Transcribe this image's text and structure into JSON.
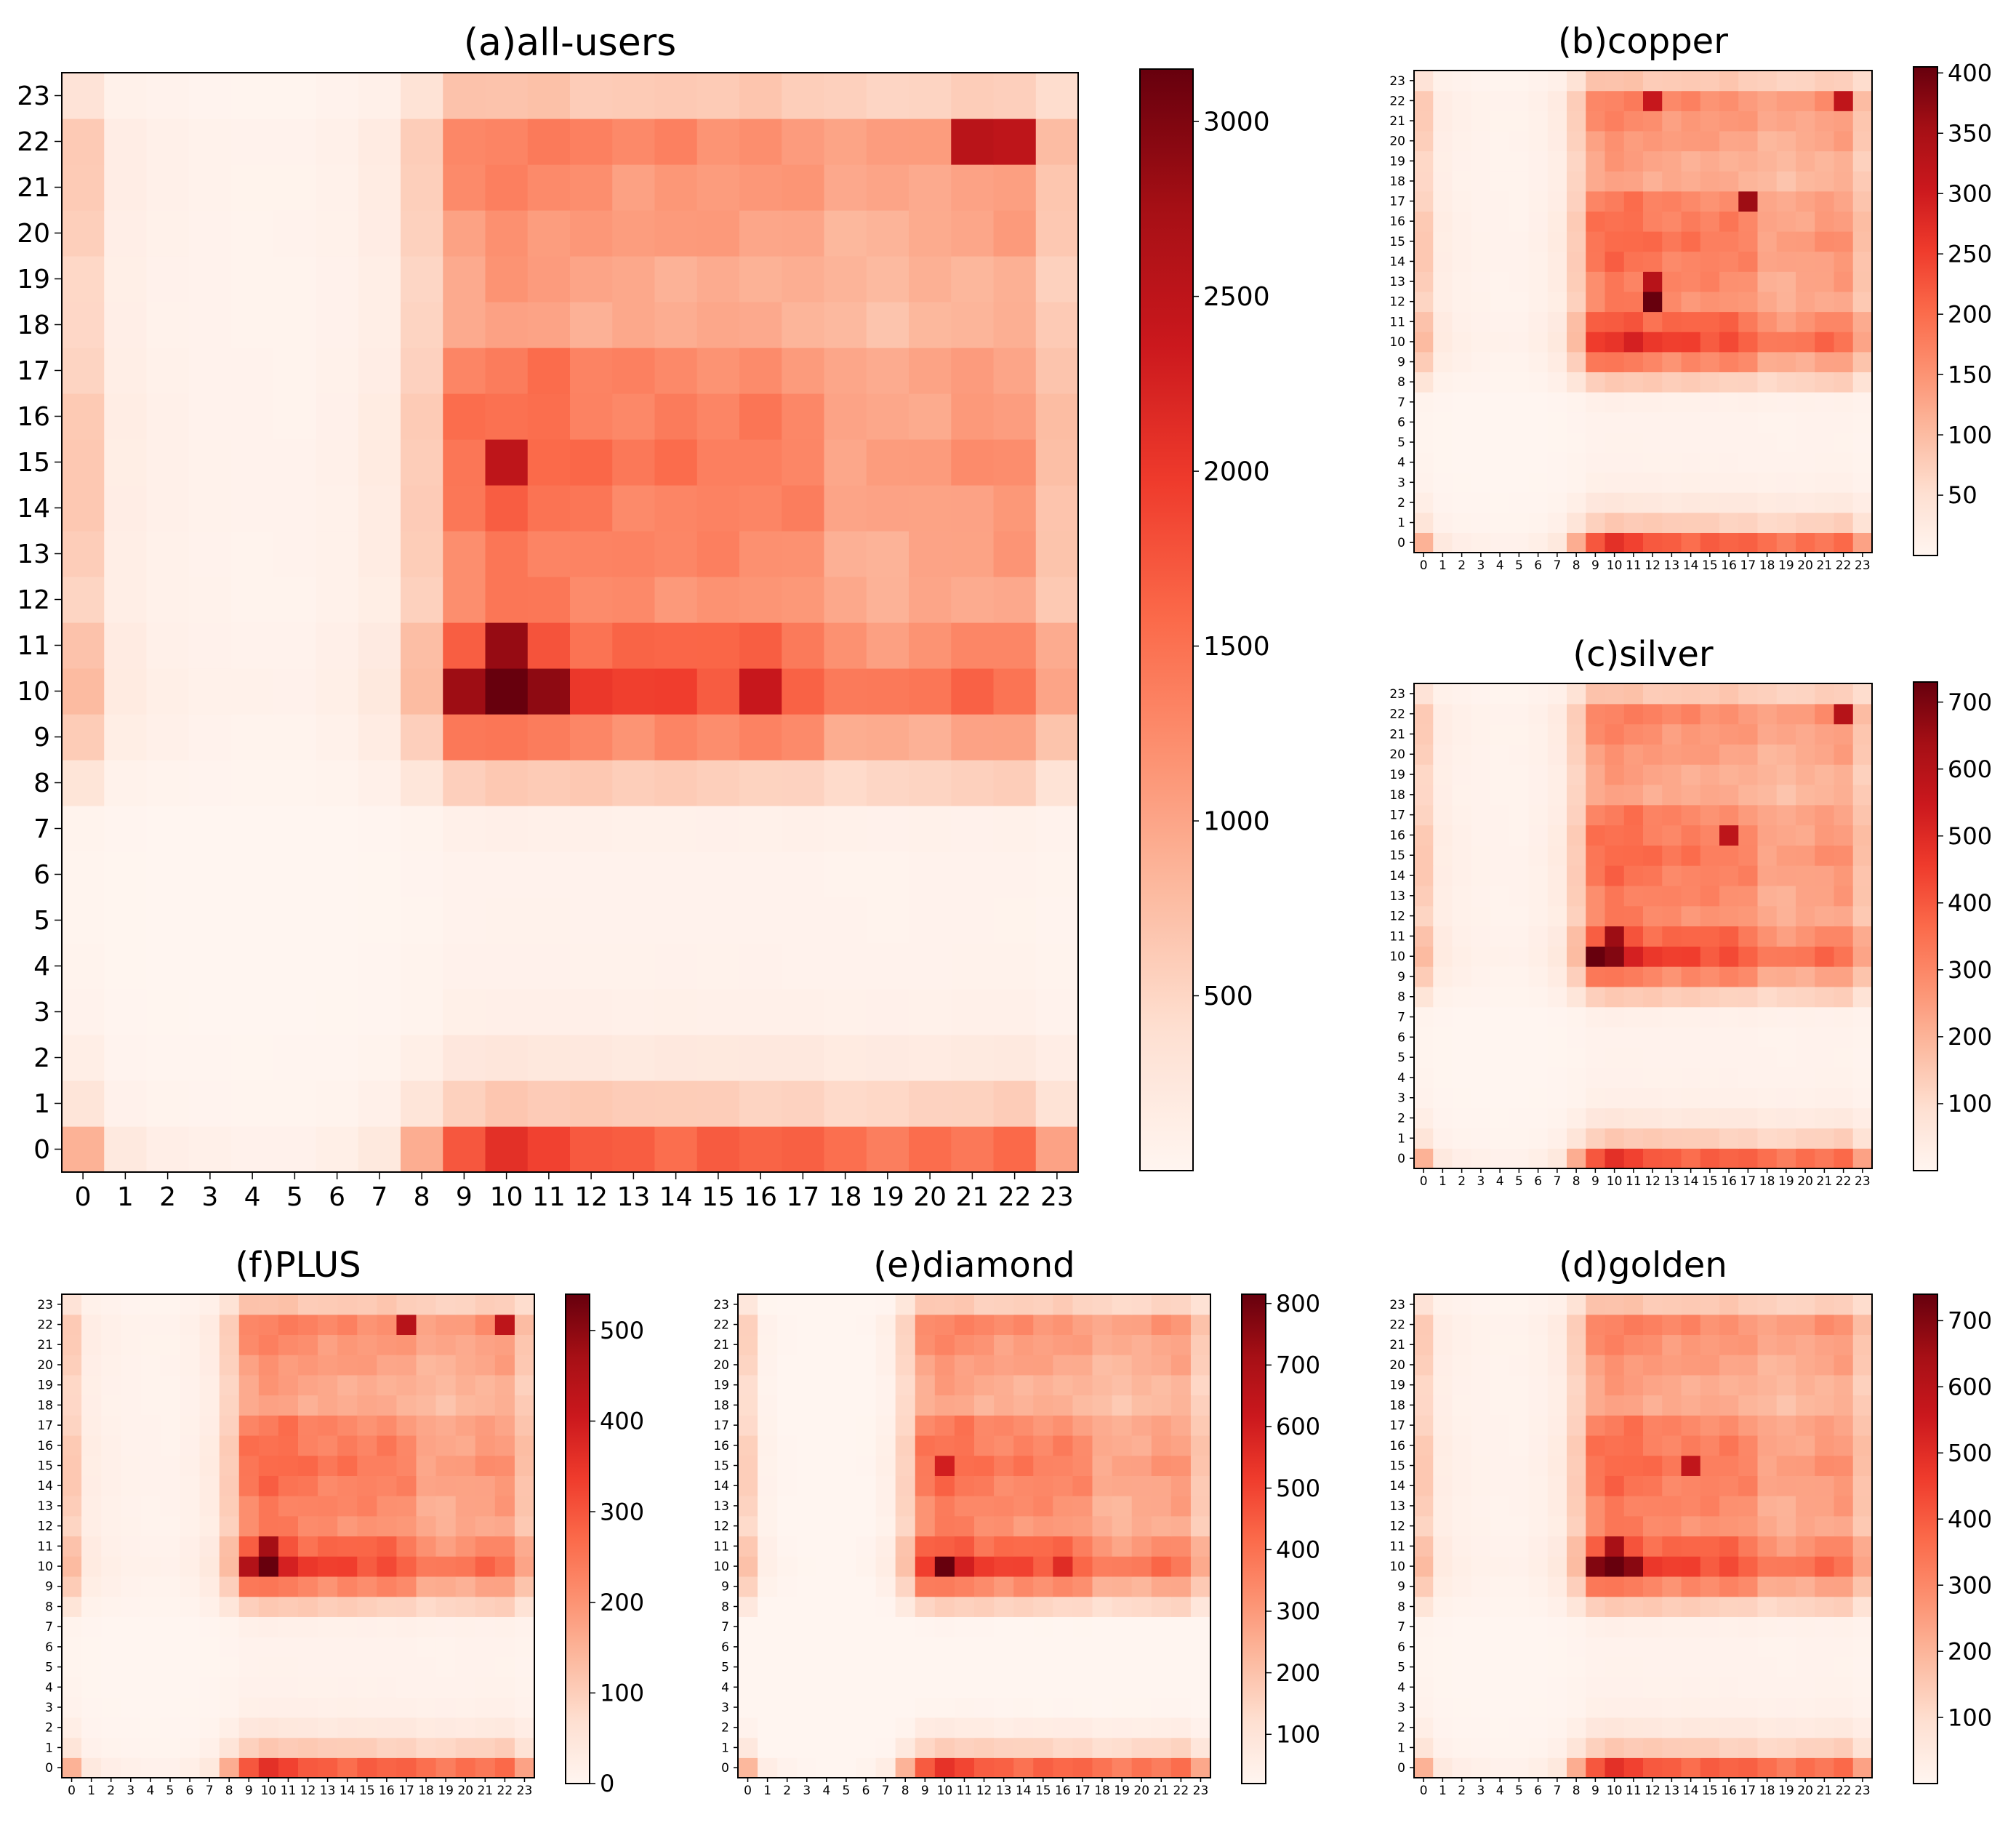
{
  "figure": {
    "background": "#ffffff"
  },
  "colormap": {
    "name": "Reds",
    "stops": [
      "#fff5f0",
      "#fee0d2",
      "#fcbba1",
      "#fc9272",
      "#fb6a4a",
      "#ef3b2c",
      "#cb181d",
      "#a50f15",
      "#67000d"
    ]
  },
  "chart_data": [
    {
      "id": "a",
      "type": "heatmap",
      "title": "(a)all-users",
      "xlabel": "",
      "ylabel": "",
      "x_categories": [
        "0",
        "1",
        "2",
        "3",
        "4",
        "5",
        "6",
        "7",
        "8",
        "9",
        "10",
        "11",
        "12",
        "13",
        "14",
        "15",
        "16",
        "17",
        "18",
        "19",
        "20",
        "21",
        "22",
        "23"
      ],
      "y_categories": [
        "0",
        "1",
        "2",
        "3",
        "4",
        "5",
        "6",
        "7",
        "8",
        "9",
        "10",
        "11",
        "12",
        "13",
        "14",
        "15",
        "16",
        "17",
        "18",
        "19",
        "20",
        "21",
        "22",
        "23"
      ],
      "vmin": 0,
      "vmax": 3150,
      "colorbar_ticks": [
        500,
        1000,
        1500,
        2000,
        2500,
        3000
      ],
      "peak": {
        "x": 10,
        "y": 10,
        "value": 3150
      },
      "hotspots": [
        {
          "x": 11,
          "y": 10,
          "value": 2900
        },
        {
          "x": 10,
          "y": 11,
          "value": 2850
        },
        {
          "x": 9,
          "y": 10,
          "value": 2800
        },
        {
          "x": 21,
          "y": 22,
          "value": 2550
        },
        {
          "x": 10,
          "y": 15,
          "value": 2500
        },
        {
          "x": 22,
          "y": 22,
          "value": 2500
        },
        {
          "x": 16,
          "y": 10,
          "value": 2400
        }
      ]
    },
    {
      "id": "b",
      "type": "heatmap",
      "title": "(b)copper",
      "xlabel": "",
      "ylabel": "",
      "x_categories": [
        "0",
        "1",
        "2",
        "3",
        "4",
        "5",
        "6",
        "7",
        "8",
        "9",
        "10",
        "11",
        "12",
        "13",
        "14",
        "15",
        "16",
        "17",
        "18",
        "19",
        "20",
        "21",
        "22",
        "23"
      ],
      "y_categories": [
        "0",
        "1",
        "2",
        "3",
        "4",
        "5",
        "6",
        "7",
        "8",
        "9",
        "10",
        "11",
        "12",
        "13",
        "14",
        "15",
        "16",
        "17",
        "18",
        "19",
        "20",
        "21",
        "22",
        "23"
      ],
      "vmin": 0,
      "vmax": 405,
      "colorbar_ticks": [
        50,
        100,
        150,
        200,
        250,
        300,
        350,
        400
      ],
      "peak": {
        "x": 12,
        "y": 12,
        "value": 405
      },
      "hotspots": [
        {
          "x": 17,
          "y": 17,
          "value": 360
        },
        {
          "x": 12,
          "y": 13,
          "value": 330
        },
        {
          "x": 22,
          "y": 22,
          "value": 320
        },
        {
          "x": 12,
          "y": 22,
          "value": 310
        }
      ]
    },
    {
      "id": "c",
      "type": "heatmap",
      "title": "(c)silver",
      "xlabel": "",
      "ylabel": "",
      "x_categories": [
        "0",
        "1",
        "2",
        "3",
        "4",
        "5",
        "6",
        "7",
        "8",
        "9",
        "10",
        "11",
        "12",
        "13",
        "14",
        "15",
        "16",
        "17",
        "18",
        "19",
        "20",
        "21",
        "22",
        "23"
      ],
      "y_categories": [
        "0",
        "1",
        "2",
        "3",
        "4",
        "5",
        "6",
        "7",
        "8",
        "9",
        "10",
        "11",
        "12",
        "13",
        "14",
        "15",
        "16",
        "17",
        "18",
        "19",
        "20",
        "21",
        "22",
        "23"
      ],
      "vmin": 0,
      "vmax": 730,
      "colorbar_ticks": [
        100,
        200,
        300,
        400,
        500,
        600,
        700
      ],
      "peak": {
        "x": 9,
        "y": 10,
        "value": 730
      },
      "hotspots": [
        {
          "x": 10,
          "y": 10,
          "value": 690
        },
        {
          "x": 10,
          "y": 11,
          "value": 650
        },
        {
          "x": 22,
          "y": 22,
          "value": 600
        },
        {
          "x": 16,
          "y": 16,
          "value": 580
        }
      ]
    },
    {
      "id": "d",
      "type": "heatmap",
      "title": "(d)golden",
      "xlabel": "",
      "ylabel": "",
      "x_categories": [
        "0",
        "1",
        "2",
        "3",
        "4",
        "5",
        "6",
        "7",
        "8",
        "9",
        "10",
        "11",
        "12",
        "13",
        "14",
        "15",
        "16",
        "17",
        "18",
        "19",
        "20",
        "21",
        "22",
        "23"
      ],
      "y_categories": [
        "0",
        "1",
        "2",
        "3",
        "4",
        "5",
        "6",
        "7",
        "8",
        "9",
        "10",
        "11",
        "12",
        "13",
        "14",
        "15",
        "16",
        "17",
        "18",
        "19",
        "20",
        "21",
        "22",
        "23"
      ],
      "vmin": 0,
      "vmax": 740,
      "colorbar_ticks": [
        100,
        200,
        300,
        400,
        500,
        600,
        700
      ],
      "peak": {
        "x": 10,
        "y": 10,
        "value": 740
      },
      "hotspots": [
        {
          "x": 9,
          "y": 10,
          "value": 700
        },
        {
          "x": 11,
          "y": 10,
          "value": 690
        },
        {
          "x": 10,
          "y": 11,
          "value": 640
        },
        {
          "x": 14,
          "y": 15,
          "value": 580
        }
      ]
    },
    {
      "id": "e",
      "type": "heatmap",
      "title": "(e)diamond",
      "xlabel": "",
      "ylabel": "",
      "x_categories": [
        "0",
        "1",
        "2",
        "3",
        "4",
        "5",
        "6",
        "7",
        "8",
        "9",
        "10",
        "11",
        "12",
        "13",
        "14",
        "15",
        "16",
        "17",
        "18",
        "19",
        "20",
        "21",
        "22",
        "23"
      ],
      "y_categories": [
        "0",
        "1",
        "2",
        "3",
        "4",
        "5",
        "6",
        "7",
        "8",
        "9",
        "10",
        "11",
        "12",
        "13",
        "14",
        "15",
        "16",
        "17",
        "18",
        "19",
        "20",
        "21",
        "22",
        "23"
      ],
      "vmin": 20,
      "vmax": 815,
      "colorbar_ticks": [
        100,
        200,
        300,
        400,
        500,
        600,
        700,
        800
      ],
      "peak": {
        "x": 10,
        "y": 10,
        "value": 815
      },
      "hotspots": [
        {
          "x": 10,
          "y": 15,
          "value": 600
        },
        {
          "x": 11,
          "y": 10,
          "value": 600
        },
        {
          "x": 16,
          "y": 10,
          "value": 560
        }
      ]
    },
    {
      "id": "f",
      "type": "heatmap",
      "title": "(f)PLUS",
      "xlabel": "",
      "ylabel": "",
      "x_categories": [
        "0",
        "1",
        "2",
        "3",
        "4",
        "5",
        "6",
        "7",
        "8",
        "9",
        "10",
        "11",
        "12",
        "13",
        "14",
        "15",
        "16",
        "17",
        "18",
        "19",
        "20",
        "21",
        "22",
        "23"
      ],
      "y_categories": [
        "0",
        "1",
        "2",
        "3",
        "4",
        "5",
        "6",
        "7",
        "8",
        "9",
        "10",
        "11",
        "12",
        "13",
        "14",
        "15",
        "16",
        "17",
        "18",
        "19",
        "20",
        "21",
        "22",
        "23"
      ],
      "vmin": 0,
      "vmax": 540,
      "colorbar_ticks": [
        0,
        100,
        200,
        300,
        400,
        500
      ],
      "peak": {
        "x": 10,
        "y": 10,
        "value": 540
      },
      "hotspots": [
        {
          "x": 10,
          "y": 11,
          "value": 470
        },
        {
          "x": 9,
          "y": 10,
          "value": 450
        },
        {
          "x": 17,
          "y": 22,
          "value": 440
        },
        {
          "x": 22,
          "y": 22,
          "value": 430
        }
      ]
    }
  ]
}
